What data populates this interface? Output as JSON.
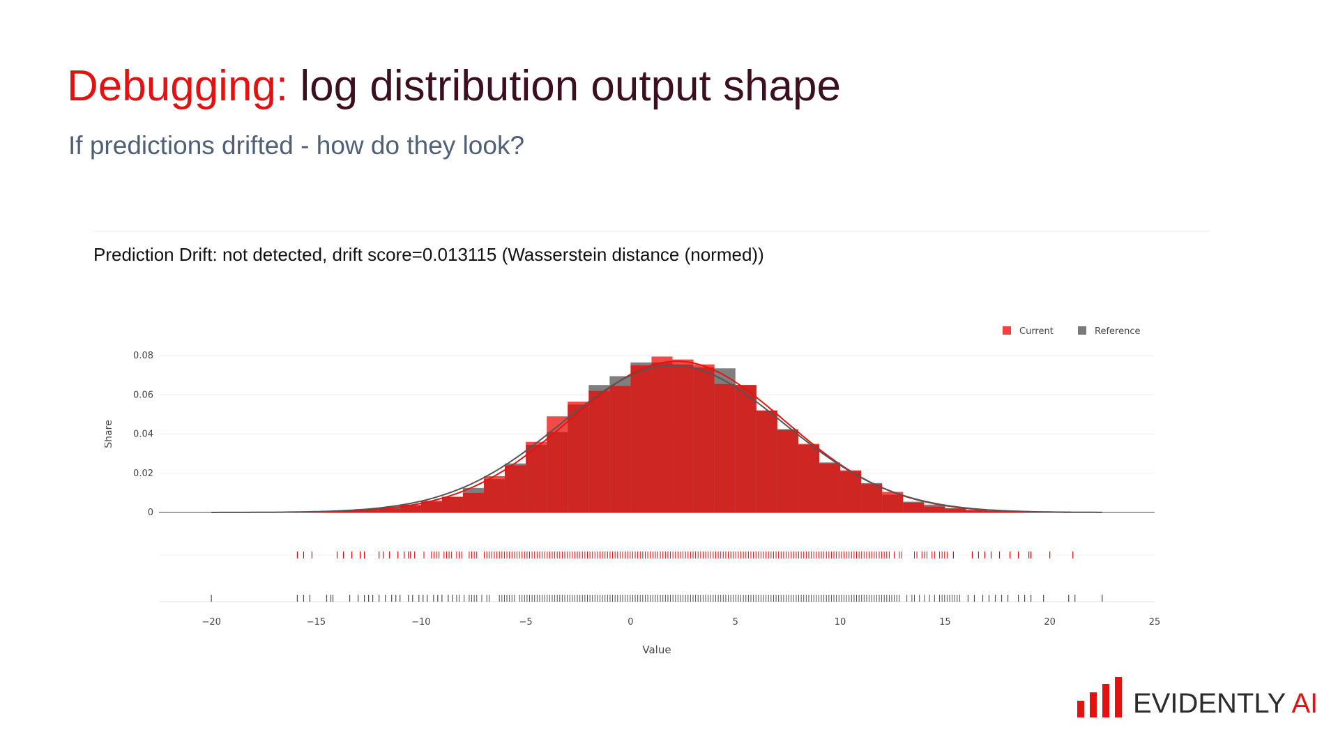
{
  "slide": {
    "title_accent": "Debugging:",
    "title_rest": "log distribution output shape",
    "subtitle": "If predictions drifted - how do they look?"
  },
  "report": {
    "title": "Prediction Drift: not detected, drift score=0.013115 (Wasserstein distance (normed))"
  },
  "logo": {
    "text_main": "EVIDENTLY ",
    "text_accent": "AI"
  },
  "colors": {
    "accent": "#e3110f",
    "current": "#ed0400",
    "reference": "#4d4d4d",
    "title_dark": "#3b0f1f",
    "subtitle": "#4e5f76"
  },
  "chart_data": {
    "type": "bar",
    "title": "",
    "xlabel": "Value",
    "ylabel": "Share",
    "xlim": [
      -22.5,
      25
    ],
    "ylim": [
      0,
      0.08
    ],
    "x_ticks": [
      -20,
      -15,
      -10,
      -5,
      0,
      5,
      10,
      15,
      20,
      25
    ],
    "x_tick_labels": [
      "−20",
      "−15",
      "−10",
      "−5",
      "0",
      "5",
      "10",
      "15",
      "20",
      "25"
    ],
    "y_ticks": [
      0,
      0.02,
      0.04,
      0.06,
      0.08
    ],
    "y_tick_labels": [
      "0",
      "0.02",
      "0.04",
      "0.06",
      "0.08"
    ],
    "legend": {
      "position": "top-right",
      "entries": [
        "Current",
        "Reference"
      ]
    },
    "bin_width": 1,
    "bin_centers": [
      -15.5,
      -14.5,
      -13.5,
      -12.5,
      -11.5,
      -10.5,
      -9.5,
      -8.5,
      -7.5,
      -6.5,
      -5.5,
      -4.5,
      -3.5,
      -2.5,
      -1.5,
      -0.5,
      0.5,
      1.5,
      2.5,
      3.5,
      4.5,
      5.5,
      6.5,
      7.5,
      8.5,
      9.5,
      10.5,
      11.5,
      12.5,
      13.5,
      14.5,
      15.5,
      16.5,
      17.5,
      18.5,
      19.5,
      20.5
    ],
    "series": [
      {
        "name": "Current",
        "values": [
          0.0003,
          0.0005,
          0.0008,
          0.0013,
          0.002,
          0.004,
          0.006,
          0.008,
          0.01,
          0.0185,
          0.024,
          0.036,
          0.049,
          0.0565,
          0.062,
          0.0645,
          0.075,
          0.0795,
          0.078,
          0.0755,
          0.0655,
          0.065,
          0.052,
          0.042,
          0.035,
          0.025,
          0.0215,
          0.0145,
          0.0105,
          0.005,
          0.003,
          0.002,
          0.0012,
          0.0008,
          0.0005,
          0.0003,
          0.0002
        ]
      },
      {
        "name": "Reference",
        "values": [
          0.0003,
          0.0005,
          0.0008,
          0.0012,
          0.0025,
          0.0035,
          0.0055,
          0.008,
          0.0125,
          0.017,
          0.025,
          0.0345,
          0.041,
          0.055,
          0.065,
          0.0695,
          0.0765,
          0.0765,
          0.0755,
          0.074,
          0.0735,
          0.065,
          0.052,
          0.0425,
          0.0345,
          0.0255,
          0.021,
          0.015,
          0.009,
          0.0055,
          0.004,
          0.0022,
          0.0013,
          0.0008,
          0.0005,
          0.0003,
          0.0002
        ]
      }
    ],
    "curves": [
      {
        "name": "Current",
        "mean": 2.2,
        "sd": 5.15,
        "range": [
          -16,
          21
        ]
      },
      {
        "name": "Reference",
        "mean": 2.0,
        "sd": 5.3,
        "range": [
          -20,
          22.5
        ]
      }
    ],
    "rug": [
      {
        "name": "Current",
        "range": [
          -16,
          21
        ],
        "sparse": [
          -15.9,
          -15.6,
          -15.2,
          -14.0,
          -13.7,
          -13.3,
          -12.9,
          -12.7,
          -12.0,
          -11.8,
          -11.5,
          -11.1,
          -10.8,
          -10.6,
          -10.5,
          -10.3,
          15.4,
          16.3,
          16.6,
          16.9,
          17.2,
          17.6,
          18.1,
          18.5,
          19.0,
          19.1,
          20.0,
          21.1
        ]
      },
      {
        "name": "Reference",
        "range": [
          -20,
          22.5
        ],
        "sparse": [
          -20.0,
          -15.9,
          -15.6,
          -15.3,
          -14.5,
          -14.3,
          -14.2,
          -13.4,
          -13.0,
          -12.7,
          -12.5,
          -12.3,
          -12.0,
          -11.7,
          -11.4,
          -11.2,
          -11.0,
          -10.6,
          -10.4,
          -10.1,
          -9.9,
          -9.7,
          -9.4,
          -9.2,
          -9.0,
          -8.7,
          -8.5,
          16.1,
          16.4,
          16.8,
          17.1,
          17.4,
          17.7,
          18.0,
          18.5,
          18.8,
          19.1,
          19.7,
          20.9,
          21.2,
          22.5
        ]
      }
    ]
  }
}
